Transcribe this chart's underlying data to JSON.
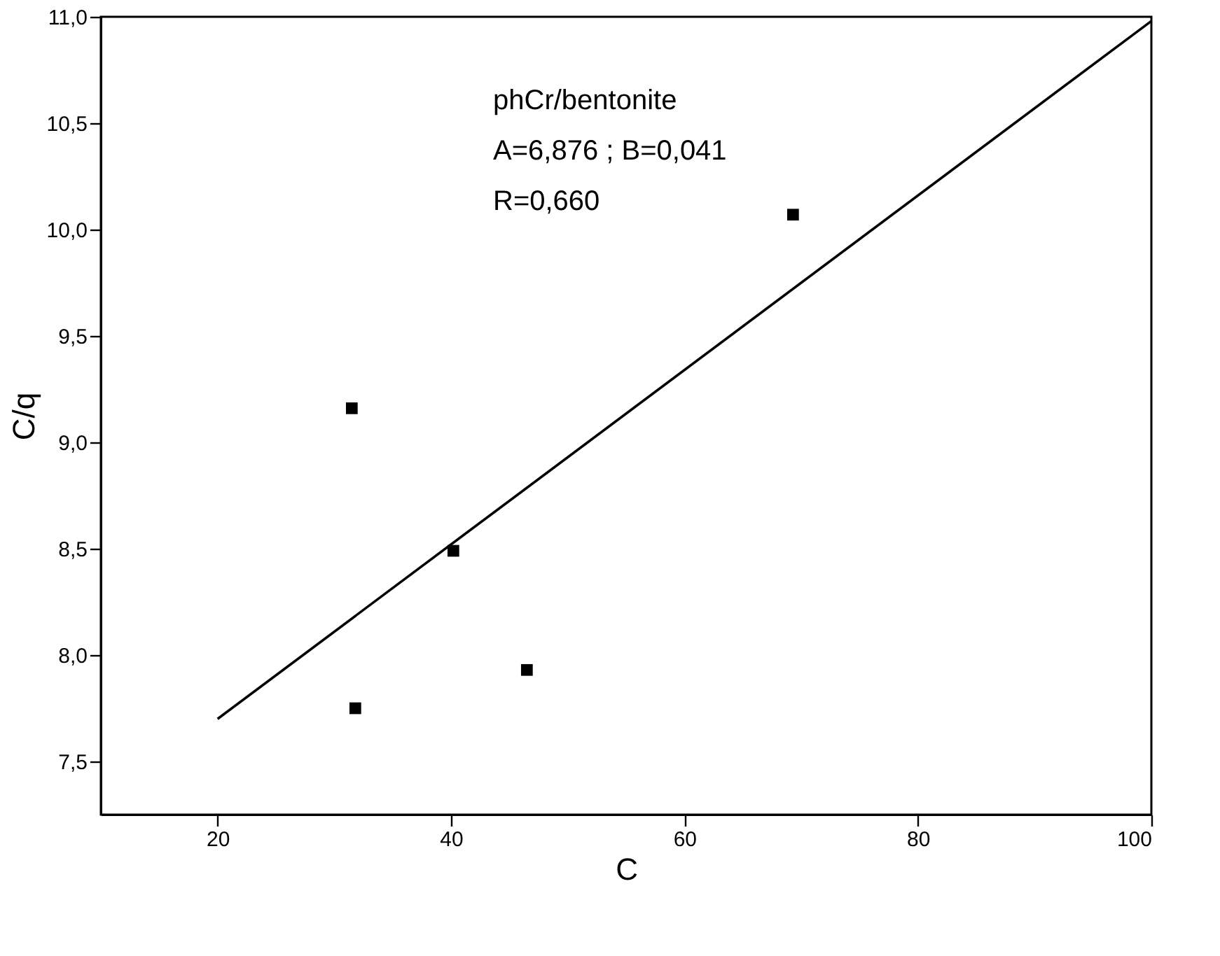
{
  "chart_data": {
    "type": "scatter",
    "xlabel": "C",
    "ylabel": "C/q",
    "xlim": [
      10,
      100
    ],
    "ylim": [
      7.25,
      11.0
    ],
    "xticks": [
      20,
      40,
      60,
      80,
      100
    ],
    "yticks": [
      {
        "value": 7.5,
        "label": "7,5"
      },
      {
        "value": 8.0,
        "label": "8,0"
      },
      {
        "value": 8.5,
        "label": "8,5"
      },
      {
        "value": 9.0,
        "label": "9,0"
      },
      {
        "value": 9.5,
        "label": "9,5"
      },
      {
        "value": 10.0,
        "label": "10,0"
      },
      {
        "value": 10.5,
        "label": "10,5"
      },
      {
        "value": 11.0,
        "label": "11,0"
      }
    ],
    "series": [
      {
        "color": "#000000",
        "marker": "square",
        "x": [
          31.5,
          40.2,
          31.8,
          46.5,
          69.3
        ],
        "values": [
          9.16,
          8.49,
          7.75,
          7.93,
          10.07
        ]
      },
      {
        "type": "line",
        "color": "#000000",
        "marker": "none",
        "line_style": "solid",
        "x": [
          20,
          100
        ],
        "values": [
          7.7,
          10.98
        ]
      }
    ],
    "annotations": [
      "phCr/bentonite",
      "A=6,876 ; B=0,041",
      "R=0,660"
    ],
    "grid": false
  }
}
